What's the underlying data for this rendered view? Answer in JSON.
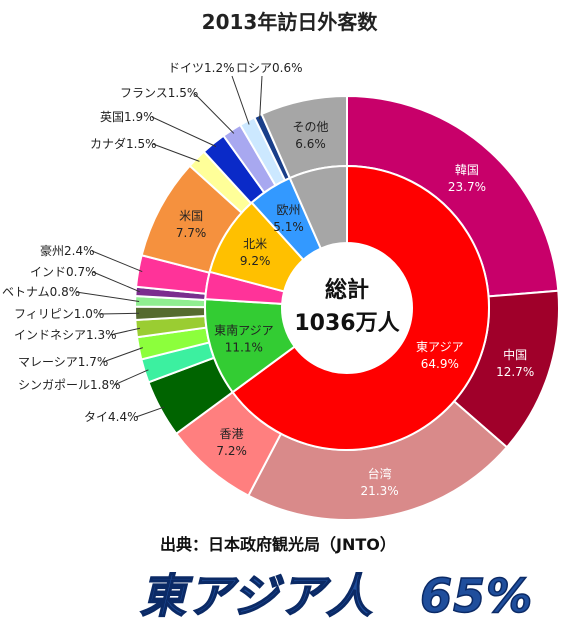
{
  "title": "2013年訪日外客数",
  "center": {
    "line1": "総計",
    "line2": "1036万人"
  },
  "source": "出典：日本政府観光局（JNTO）",
  "headline": "東アジア人　65%",
  "chart_data": {
    "type": "pie",
    "title": "2013年訪日外客数",
    "outer": [
      {
        "label": "韓国",
        "value": 23.7,
        "pct": "23.7%",
        "color": "#c8006a",
        "region": "東アジア"
      },
      {
        "label": "中国",
        "value": 12.7,
        "pct": "12.7%",
        "color": "#a0002a",
        "region": "東アジア"
      },
      {
        "label": "台湾",
        "value": 21.3,
        "pct": "21.3%",
        "color": "#d98a8a",
        "region": "東アジア"
      },
      {
        "label": "香港",
        "value": 7.2,
        "pct": "7.2%",
        "color": "#ff7f7f",
        "region": "東アジア"
      },
      {
        "label": "タイ",
        "value": 4.4,
        "pct": "4.4%",
        "color": "#006400",
        "region": "東南アジア"
      },
      {
        "label": "シンガポール",
        "value": 1.8,
        "pct": "1.8%",
        "color": "#3cf0a0",
        "region": "東南アジア"
      },
      {
        "label": "マレーシア",
        "value": 1.7,
        "pct": "1.7%",
        "color": "#8cff3c",
        "region": "東南アジア"
      },
      {
        "label": "インドネシア",
        "value": 1.3,
        "pct": "1.3%",
        "color": "#9acd32",
        "region": "東南アジア"
      },
      {
        "label": "フィリピン",
        "value": 1.0,
        "pct": "1.0%",
        "color": "#556b2f",
        "region": "東南アジア"
      },
      {
        "label": "ベトナム",
        "value": 0.8,
        "pct": "0.8%",
        "color": "#90ee90",
        "region": "東南アジア"
      },
      {
        "label": "インド",
        "value": 0.7,
        "pct": "0.7%",
        "color": "#7b2d8e",
        "region": "その他"
      },
      {
        "label": "豪州",
        "value": 2.4,
        "pct": "2.4%",
        "color": "#ff3399",
        "region": "その他"
      },
      {
        "label": "米国",
        "value": 7.7,
        "pct": "7.7%",
        "color": "#f5913e",
        "region": "北米"
      },
      {
        "label": "カナダ",
        "value": 1.5,
        "pct": "1.5%",
        "color": "#ffff99",
        "region": "北米"
      },
      {
        "label": "英国",
        "value": 1.9,
        "pct": "1.9%",
        "color": "#0a2ac8",
        "region": "欧州"
      },
      {
        "label": "フランス",
        "value": 1.5,
        "pct": "1.5%",
        "color": "#a8a8f0",
        "region": "欧州"
      },
      {
        "label": "ドイツ",
        "value": 1.2,
        "pct": "1.2%",
        "color": "#cce8ff",
        "region": "欧州"
      },
      {
        "label": "ロシア",
        "value": 0.6,
        "pct": "0.6%",
        "color": "#1a3f8a",
        "region": "欧州"
      },
      {
        "label": "その他",
        "value": 6.6,
        "pct": "6.6%",
        "color": "#a6a6a6",
        "region": "その他"
      }
    ],
    "inner": [
      {
        "label": "東アジア",
        "value": 64.9,
        "pct": "64.9%",
        "color": "#ff0000"
      },
      {
        "label": "東南アジア",
        "value": 11.1,
        "pct": "11.1%",
        "color": "#33cc33"
      },
      {
        "label": "",
        "value": 3.1,
        "pct": "",
        "color": "#ff3399"
      },
      {
        "label": "北米",
        "value": 9.2,
        "pct": "9.2%",
        "color": "#ffc000"
      },
      {
        "label": "欧州",
        "value": 5.1,
        "pct": "5.1%",
        "color": "#3399ff"
      },
      {
        "label": "",
        "value": 6.6,
        "pct": "",
        "color": "#a6a6a6"
      }
    ]
  }
}
